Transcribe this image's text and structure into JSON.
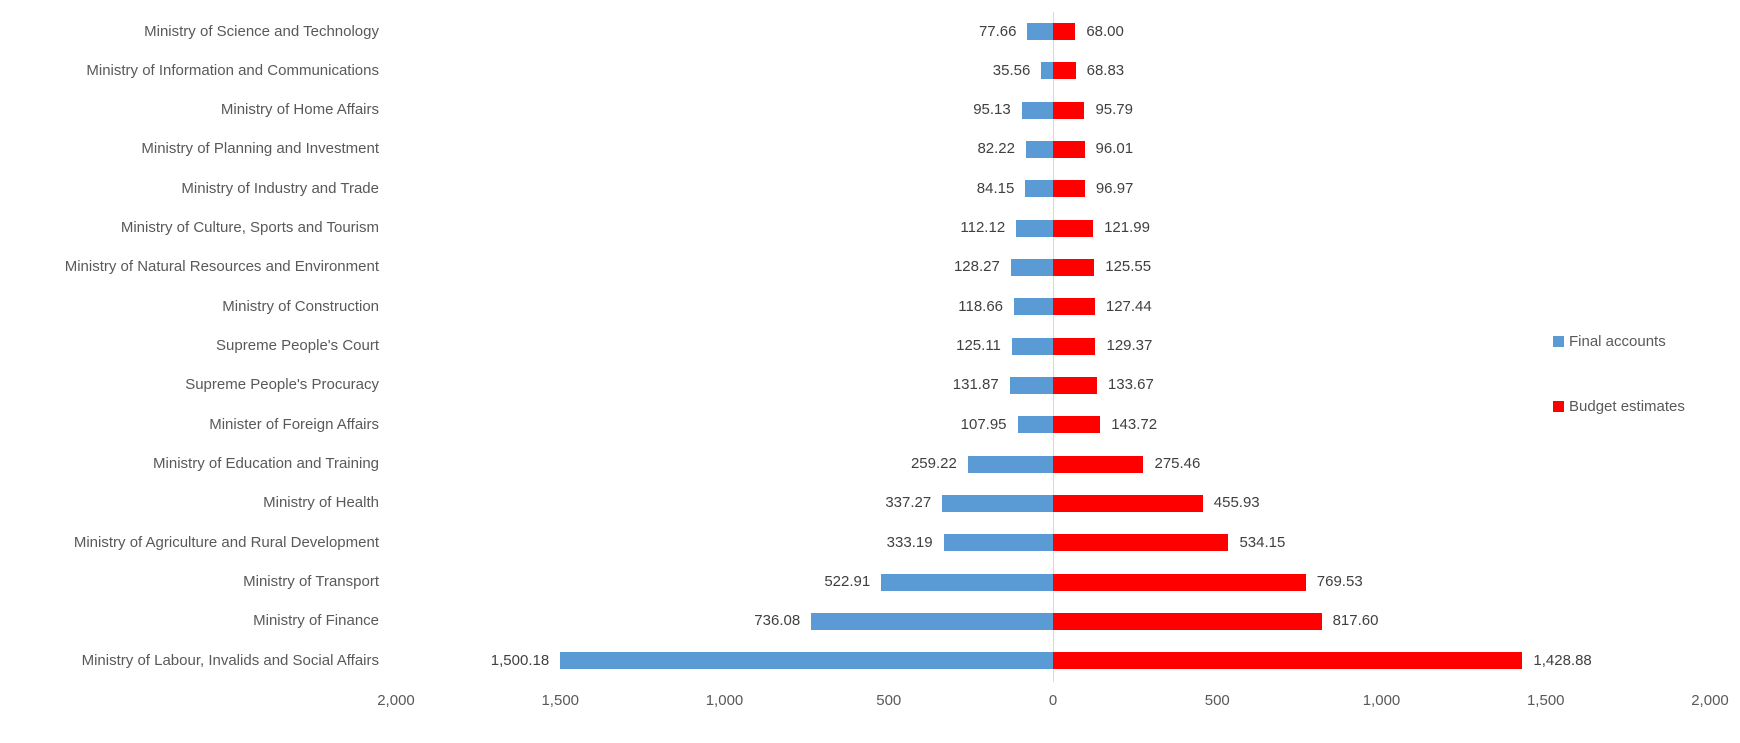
{
  "chart_data": {
    "type": "bar",
    "variant": "diverging-horizontal-tornado",
    "title": "",
    "xlabel": "",
    "ylabel": "",
    "grid": false,
    "categories": [
      "Ministry of Science and Technology",
      "Ministry of Information and Communications",
      "Ministry of Home Affairs",
      "Ministry of Planning and Investment",
      "Ministry of Industry and Trade",
      "Ministry of Culture, Sports and Tourism",
      "Ministry of Natural Resources and Environment",
      "Ministry of Construction",
      "Supreme People's Court",
      "Supreme People's Procuracy",
      "Minister of Foreign Affairs",
      "Ministry of Education and Training",
      "Ministry of Health",
      "Ministry of Agriculture and Rural Development",
      "Ministry of Transport",
      "Ministry of Finance",
      "Ministry of Labour, Invalids and Social Affairs"
    ],
    "series": [
      {
        "name": "Final accounts",
        "side": "left",
        "color": "#5B9BD5",
        "values": [
          77.66,
          35.56,
          95.13,
          82.22,
          84.15,
          112.12,
          128.27,
          118.66,
          125.11,
          131.87,
          107.95,
          259.22,
          337.27,
          333.19,
          522.91,
          736.08,
          1500.18
        ],
        "labels": [
          "77.66",
          "35.56",
          "95.13",
          "82.22",
          "84.15",
          "112.12",
          "128.27",
          "118.66",
          "125.11",
          "131.87",
          "107.95",
          "259.22",
          "337.27",
          "333.19",
          "522.91",
          "736.08",
          "1,500.18"
        ]
      },
      {
        "name": "Budget estimates",
        "side": "right",
        "color": "#FF0000",
        "values": [
          68.0,
          68.83,
          95.79,
          96.01,
          96.97,
          121.99,
          125.55,
          127.44,
          129.37,
          133.67,
          143.72,
          275.46,
          455.93,
          534.15,
          769.53,
          817.6,
          1428.88
        ],
        "labels": [
          "68.00",
          "68.83",
          "95.79",
          "96.01",
          "96.97",
          "121.99",
          "125.55",
          "127.44",
          "129.37",
          "133.67",
          "143.72",
          "275.46",
          "455.93",
          "534.15",
          "769.53",
          "817.60",
          "1,428.88"
        ]
      }
    ],
    "x_axis": {
      "range_each_side": 2000,
      "tick_interval": 500,
      "tick_values": [
        -2000,
        -1500,
        -1000,
        -500,
        0,
        500,
        1000,
        1500,
        2000
      ],
      "tick_labels": [
        "2,000",
        "1,500",
        "1,000",
        "500",
        "0",
        "500",
        "1,000",
        "1,500",
        "2,000"
      ]
    },
    "legend": {
      "position": "right",
      "entries": [
        "Final accounts",
        "Budget estimates"
      ]
    }
  },
  "colors": {
    "final_accounts": "#5B9BD5",
    "budget_estimates": "#FF0000",
    "axis_line": "#D9D9D9",
    "category_text": "#595959",
    "value_text": "#404040",
    "background": "#FFFFFF"
  }
}
